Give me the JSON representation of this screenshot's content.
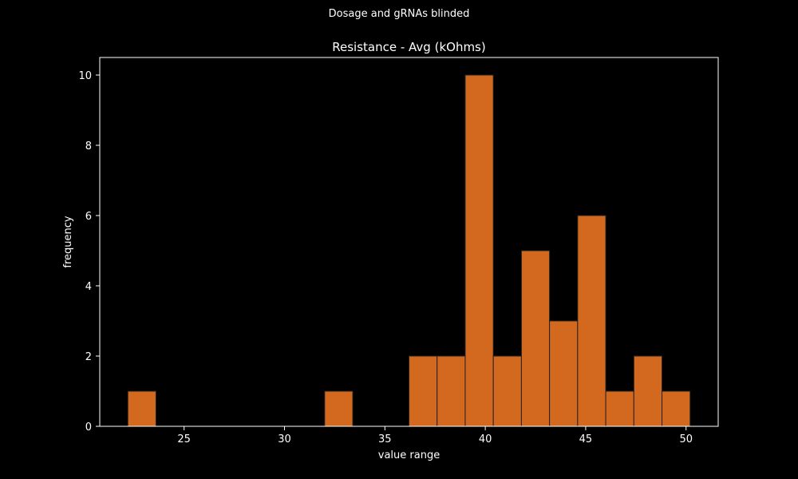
{
  "figure": {
    "suptitle": "Dosage and gRNAs blinded"
  },
  "chart_data": {
    "type": "bar",
    "title": "Resistance - Avg (kOhms)",
    "xlabel": "value range",
    "ylabel": "frequency",
    "bins": [
      {
        "x0": 22.2,
        "x1": 23.6,
        "count": 1
      },
      {
        "x0": 23.6,
        "x1": 25.0,
        "count": 0
      },
      {
        "x0": 25.0,
        "x1": 26.4,
        "count": 0
      },
      {
        "x0": 26.4,
        "x1": 27.8,
        "count": 0
      },
      {
        "x0": 27.8,
        "x1": 29.2,
        "count": 0
      },
      {
        "x0": 29.2,
        "x1": 30.6,
        "count": 0
      },
      {
        "x0": 30.6,
        "x1": 32.0,
        "count": 0
      },
      {
        "x0": 32.0,
        "x1": 33.4,
        "count": 1
      },
      {
        "x0": 33.4,
        "x1": 34.8,
        "count": 0
      },
      {
        "x0": 34.8,
        "x1": 36.2,
        "count": 0
      },
      {
        "x0": 36.2,
        "x1": 37.6,
        "count": 2
      },
      {
        "x0": 37.6,
        "x1": 39.0,
        "count": 2
      },
      {
        "x0": 39.0,
        "x1": 40.4,
        "count": 10
      },
      {
        "x0": 40.4,
        "x1": 41.8,
        "count": 2
      },
      {
        "x0": 41.8,
        "x1": 43.2,
        "count": 5
      },
      {
        "x0": 43.2,
        "x1": 44.6,
        "count": 3
      },
      {
        "x0": 44.6,
        "x1": 46.0,
        "count": 6
      },
      {
        "x0": 46.0,
        "x1": 47.4,
        "count": 1
      },
      {
        "x0": 47.4,
        "x1": 48.8,
        "count": 2
      },
      {
        "x0": 48.8,
        "x1": 50.2,
        "count": 1
      }
    ],
    "xlim": [
      20.8,
      51.6
    ],
    "ylim": [
      0,
      10.5
    ],
    "xticks": [
      25,
      30,
      35,
      40,
      45,
      50
    ],
    "yticks": [
      0,
      2,
      4,
      6,
      8,
      10
    ],
    "grid": false,
    "bar_color": "#d2691e",
    "bar_edge_color": "#222222",
    "axes_color": "#ffffff",
    "background": "#000000"
  }
}
